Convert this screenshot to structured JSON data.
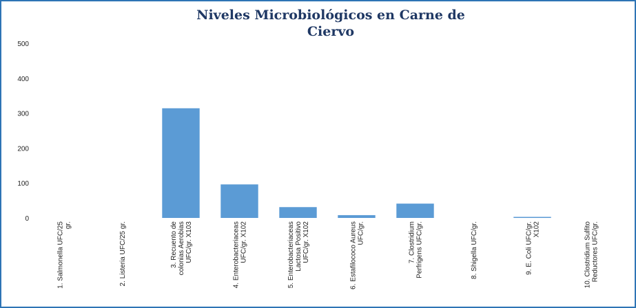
{
  "chart_data": {
    "type": "bar",
    "title": [
      "Niveles Microbiológicos en Carne de",
      "Ciervo"
    ],
    "categories": [
      [
        "1. Salmonella UFC/25",
        "gr."
      ],
      [
        "2. Listeria UFC/25 gr."
      ],
      [
        "3. Recuento de",
        "colonias Aerobias",
        "UFC/gr. X103"
      ],
      [
        "4. Enterobacteriaceas",
        "UFC/gr. X102"
      ],
      [
        "5. Enterobacteriaceas",
        "Lactosa Positivo",
        "UFC/gr. X102"
      ],
      [
        "6. Estafilococo Aureus",
        "UFC/gr."
      ],
      [
        "7. Clostridium",
        "Perfrigens UFC/gr."
      ],
      [
        "8. Shigella UFC/gr."
      ],
      [
        "9. E. Coli UFC/gr.",
        "X102"
      ],
      [
        "10. Clostridium Sulfito",
        "Reductores UFC/gr."
      ]
    ],
    "values": [
      0,
      0,
      314,
      96,
      31,
      8,
      41,
      0,
      3,
      0
    ],
    "color": "#5b9bd5",
    "ylim": [
      0,
      500
    ],
    "yticks": [
      0,
      100,
      200,
      300,
      400,
      500
    ],
    "grid": false
  }
}
